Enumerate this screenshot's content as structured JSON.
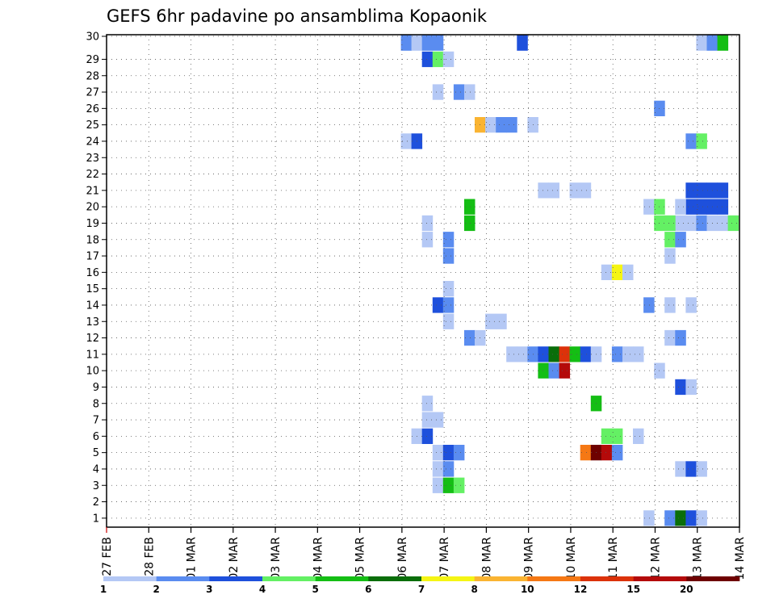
{
  "chart_data": {
    "type": "heatmap",
    "title": "GEFS 6hr padavine po ansamblima Kopaonik",
    "xlabel": "",
    "ylabel": "",
    "x_ticks": [
      "27 FEB",
      "28 FEB",
      "01 MAR",
      "02 MAR",
      "03 MAR",
      "04 MAR",
      "05 MAR",
      "06 MAR",
      "07 MAR",
      "08 MAR",
      "09 MAR",
      "10 MAR",
      "11 MAR",
      "12 MAR",
      "13 MAR",
      "14 MAR"
    ],
    "y_members": [
      1,
      2,
      3,
      4,
      5,
      6,
      7,
      8,
      9,
      10,
      11,
      12,
      13,
      14,
      15,
      16,
      17,
      18,
      19,
      20,
      21,
      22,
      23,
      24,
      25,
      26,
      27,
      28,
      29,
      30
    ],
    "x_unit": "days since 27 FEB, 6h steps",
    "grid": true,
    "colorbar": {
      "tick_labels": [
        "1",
        "2",
        "3",
        "4",
        "5",
        "6",
        "7",
        "8",
        "10",
        "12",
        "15",
        "20"
      ],
      "colors": [
        "#b4c8f5",
        "#5a8cf0",
        "#1e50dc",
        "#64f064",
        "#14be14",
        "#0a6e0a",
        "#f5f514",
        "#fab432",
        "#f57814",
        "#dc320a",
        "#b40a0a",
        "#6e0000"
      ]
    },
    "cells": [
      {
        "m": 30,
        "d": 7.1,
        "l": 1
      },
      {
        "m": 30,
        "d": 7.35,
        "l": 0
      },
      {
        "m": 30,
        "d": 7.6,
        "l": 1
      },
      {
        "m": 30,
        "d": 7.85,
        "l": 1
      },
      {
        "m": 30,
        "d": 9.85,
        "l": 2
      },
      {
        "m": 30,
        "d": 14.1,
        "l": 0
      },
      {
        "m": 30,
        "d": 14.35,
        "l": 1
      },
      {
        "m": 30,
        "d": 14.6,
        "l": 4
      },
      {
        "m": 29,
        "d": 7.6,
        "l": 2
      },
      {
        "m": 29,
        "d": 7.85,
        "l": 3
      },
      {
        "m": 29,
        "d": 8.1,
        "l": 0
      },
      {
        "m": 27,
        "d": 7.85,
        "l": 0
      },
      {
        "m": 27,
        "d": 8.35,
        "l": 1
      },
      {
        "m": 27,
        "d": 8.6,
        "l": 0
      },
      {
        "m": 26,
        "d": 13.1,
        "l": 1
      },
      {
        "m": 25,
        "d": 8.85,
        "l": 7
      },
      {
        "m": 25,
        "d": 9.1,
        "l": 0
      },
      {
        "m": 25,
        "d": 9.35,
        "l": 1
      },
      {
        "m": 25,
        "d": 9.6,
        "l": 1
      },
      {
        "m": 25,
        "d": 10.1,
        "l": 0
      },
      {
        "m": 24,
        "d": 7.1,
        "l": 0
      },
      {
        "m": 24,
        "d": 7.35,
        "l": 2
      },
      {
        "m": 24,
        "d": 13.85,
        "l": 1
      },
      {
        "m": 24,
        "d": 14.1,
        "l": 3
      },
      {
        "m": 21,
        "d": 10.35,
        "l": 0
      },
      {
        "m": 21,
        "d": 10.6,
        "l": 0
      },
      {
        "m": 21,
        "d": 11.1,
        "l": 0
      },
      {
        "m": 21,
        "d": 11.35,
        "l": 0
      },
      {
        "m": 21,
        "d": 13.85,
        "l": 2
      },
      {
        "m": 21,
        "d": 14.1,
        "l": 2
      },
      {
        "m": 21,
        "d": 14.35,
        "l": 2
      },
      {
        "m": 21,
        "d": 14.6,
        "l": 2
      },
      {
        "m": 20,
        "d": 13.85,
        "l": 2
      },
      {
        "m": 20,
        "d": 14.1,
        "l": 2
      },
      {
        "m": 20,
        "d": 14.35,
        "l": 2
      },
      {
        "m": 20,
        "d": 14.6,
        "l": 2
      },
      {
        "m": 20,
        "d": 8.6,
        "l": 4
      },
      {
        "m": 20,
        "d": 12.85,
        "l": 0
      },
      {
        "m": 20,
        "d": 13.1,
        "l": 3
      },
      {
        "m": 20,
        "d": 13.6,
        "l": 0
      },
      {
        "m": 19,
        "d": 8.6,
        "l": 4
      },
      {
        "m": 19,
        "d": 13.1,
        "l": 3
      },
      {
        "m": 19,
        "d": 13.6,
        "l": 0
      },
      {
        "m": 19,
        "d": 14.6,
        "l": 0
      },
      {
        "m": 19,
        "d": 14.85,
        "l": 3
      },
      {
        "m": 19,
        "d": 7.6,
        "l": 0
      },
      {
        "m": 19,
        "d": 13.35,
        "l": 3
      },
      {
        "m": 19,
        "d": 13.85,
        "l": 0
      },
      {
        "m": 19,
        "d": 14.1,
        "l": 1
      },
      {
        "m": 19,
        "d": 14.35,
        "l": 0
      },
      {
        "m": 18,
        "d": 7.6,
        "l": 0
      },
      {
        "m": 18,
        "d": 8.1,
        "l": 1
      },
      {
        "m": 18,
        "d": 13.35,
        "l": 3
      },
      {
        "m": 18,
        "d": 13.6,
        "l": 1
      },
      {
        "m": 17,
        "d": 8.1,
        "l": 1
      },
      {
        "m": 17,
        "d": 13.35,
        "l": 0
      },
      {
        "m": 16,
        "d": 11.85,
        "l": 0
      },
      {
        "m": 16,
        "d": 12.1,
        "l": 6
      },
      {
        "m": 16,
        "d": 12.35,
        "l": 0
      },
      {
        "m": 15,
        "d": 8.1,
        "l": 0
      },
      {
        "m": 14,
        "d": 7.85,
        "l": 2
      },
      {
        "m": 14,
        "d": 8.1,
        "l": 1
      },
      {
        "m": 14,
        "d": 12.85,
        "l": 1
      },
      {
        "m": 14,
        "d": 13.35,
        "l": 0
      },
      {
        "m": 14,
        "d": 13.85,
        "l": 0
      },
      {
        "m": 13,
        "d": 8.1,
        "l": 0
      },
      {
        "m": 13,
        "d": 9.1,
        "l": 0
      },
      {
        "m": 13,
        "d": 9.35,
        "l": 0
      },
      {
        "m": 12,
        "d": 8.6,
        "l": 1
      },
      {
        "m": 12,
        "d": 8.85,
        "l": 0
      },
      {
        "m": 12,
        "d": 13.35,
        "l": 0
      },
      {
        "m": 12,
        "d": 13.6,
        "l": 1
      },
      {
        "m": 11,
        "d": 9.6,
        "l": 0
      },
      {
        "m": 11,
        "d": 9.85,
        "l": 0
      },
      {
        "m": 11,
        "d": 10.1,
        "l": 1
      },
      {
        "m": 11,
        "d": 10.35,
        "l": 2
      },
      {
        "m": 11,
        "d": 10.6,
        "l": 5
      },
      {
        "m": 11,
        "d": 10.85,
        "l": 9
      },
      {
        "m": 11,
        "d": 11.1,
        "l": 4
      },
      {
        "m": 11,
        "d": 11.35,
        "l": 2
      },
      {
        "m": 11,
        "d": 11.6,
        "l": 0
      },
      {
        "m": 11,
        "d": 12.1,
        "l": 1
      },
      {
        "m": 11,
        "d": 12.35,
        "l": 0
      },
      {
        "m": 11,
        "d": 12.6,
        "l": 0
      },
      {
        "m": 10,
        "d": 10.35,
        "l": 4
      },
      {
        "m": 10,
        "d": 10.6,
        "l": 1
      },
      {
        "m": 10,
        "d": 10.85,
        "l": 10
      },
      {
        "m": 10,
        "d": 13.1,
        "l": 0
      },
      {
        "m": 9,
        "d": 13.6,
        "l": 2
      },
      {
        "m": 9,
        "d": 13.85,
        "l": 0
      },
      {
        "m": 8,
        "d": 7.6,
        "l": 0
      },
      {
        "m": 8,
        "d": 11.6,
        "l": 4
      },
      {
        "m": 7,
        "d": 7.6,
        "l": 0
      },
      {
        "m": 7,
        "d": 7.85,
        "l": 0
      },
      {
        "m": 6,
        "d": 7.35,
        "l": 0
      },
      {
        "m": 6,
        "d": 7.6,
        "l": 2
      },
      {
        "m": 6,
        "d": 11.85,
        "l": 3
      },
      {
        "m": 6,
        "d": 12.1,
        "l": 3
      },
      {
        "m": 6,
        "d": 12.6,
        "l": 0
      },
      {
        "m": 5,
        "d": 7.85,
        "l": 0
      },
      {
        "m": 5,
        "d": 8.1,
        "l": 2
      },
      {
        "m": 5,
        "d": 8.35,
        "l": 1
      },
      {
        "m": 5,
        "d": 11.35,
        "l": 8
      },
      {
        "m": 5,
        "d": 11.6,
        "l": 11
      },
      {
        "m": 5,
        "d": 11.85,
        "l": 10
      },
      {
        "m": 5,
        "d": 12.1,
        "l": 1
      },
      {
        "m": 4,
        "d": 7.85,
        "l": 0
      },
      {
        "m": 4,
        "d": 8.1,
        "l": 1
      },
      {
        "m": 4,
        "d": 13.6,
        "l": 0
      },
      {
        "m": 4,
        "d": 13.85,
        "l": 2
      },
      {
        "m": 4,
        "d": 14.1,
        "l": 0
      },
      {
        "m": 3,
        "d": 7.85,
        "l": 0
      },
      {
        "m": 3,
        "d": 8.1,
        "l": 4
      },
      {
        "m": 3,
        "d": 8.35,
        "l": 3
      },
      {
        "m": 1,
        "d": 12.85,
        "l": 0
      },
      {
        "m": 1,
        "d": 13.35,
        "l": 1
      },
      {
        "m": 1,
        "d": 13.6,
        "l": 5
      },
      {
        "m": 1,
        "d": 13.85,
        "l": 2
      },
      {
        "m": 1,
        "d": 14.1,
        "l": 0
      }
    ]
  }
}
